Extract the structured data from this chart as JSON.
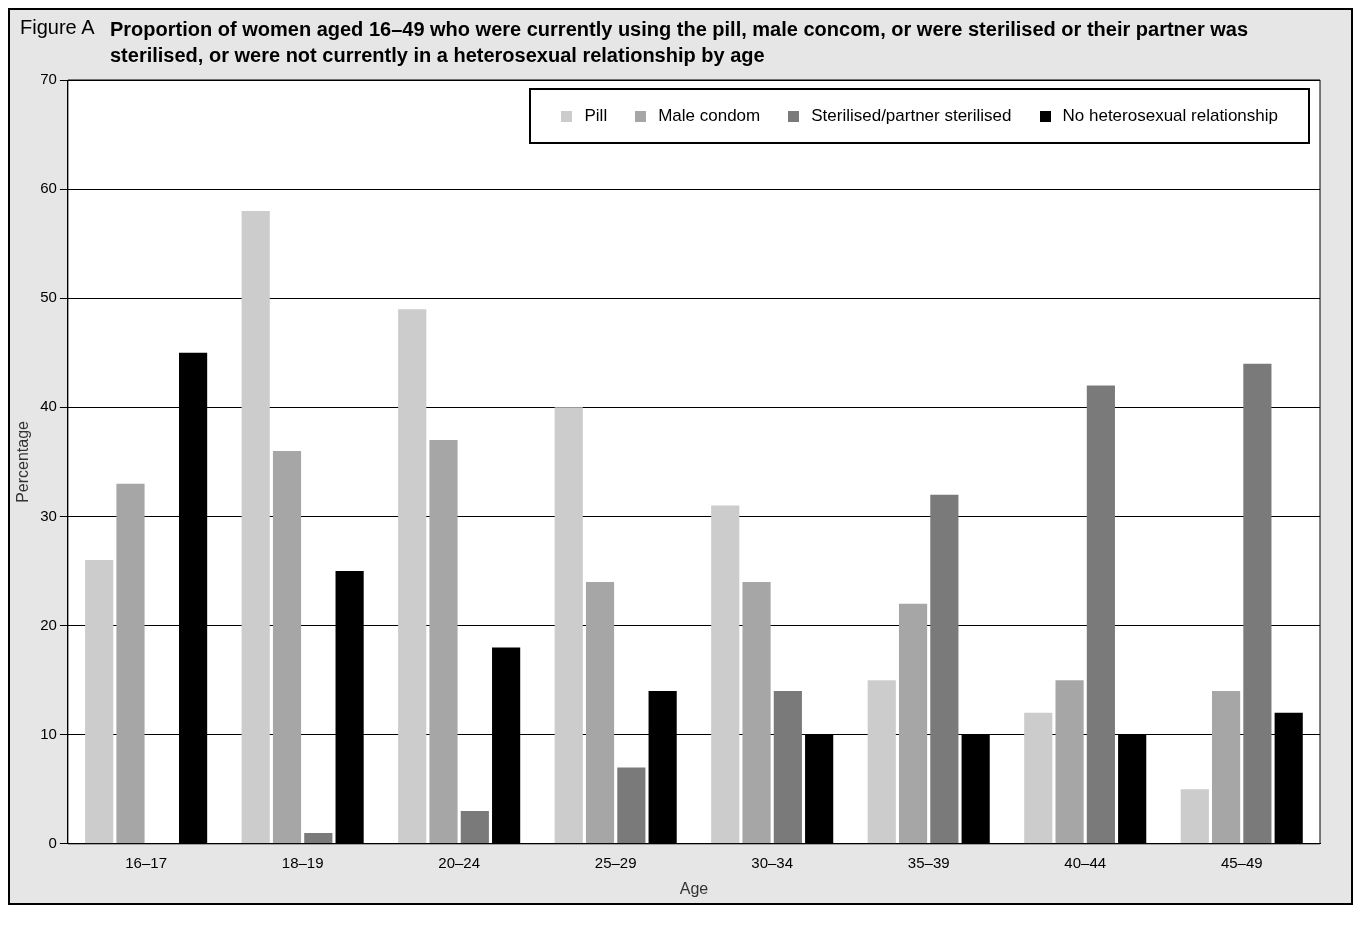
{
  "chart_data": {
    "type": "bar",
    "title": "Proportion of women aged 16–49 who were currently using the pill, male concom, or were sterilised or their partner was sterilised, or were not currently in a heterosexual relationship by age",
    "annotations": [
      "Figure A"
    ],
    "xlabel": "Age",
    "ylabel": "Percentage",
    "categories": [
      "16–17",
      "18–19",
      "20–24",
      "25–29",
      "30–34",
      "35–39",
      "40–44",
      "45–49"
    ],
    "series": [
      {
        "name": "Pill",
        "color": "#cccccc",
        "values": [
          26,
          58,
          49,
          40,
          31,
          15,
          12,
          5
        ]
      },
      {
        "name": "Male condom",
        "color": "#a6a6a6",
        "values": [
          33,
          36,
          37,
          24,
          24,
          22,
          15,
          14
        ]
      },
      {
        "name": "Sterilised/partner sterilised",
        "color": "#7a7a7a",
        "values": [
          0,
          1,
          3,
          7,
          14,
          32,
          42,
          44
        ]
      },
      {
        "name": "No heterosexual relationship",
        "color": "#000000",
        "values": [
          45,
          25,
          18,
          14,
          10,
          10,
          10,
          12
        ]
      }
    ],
    "ylim": [
      0,
      70
    ],
    "yticks": [
      0,
      10,
      20,
      30,
      40,
      50,
      60,
      70
    ],
    "grid": "y",
    "legend": "top right"
  }
}
